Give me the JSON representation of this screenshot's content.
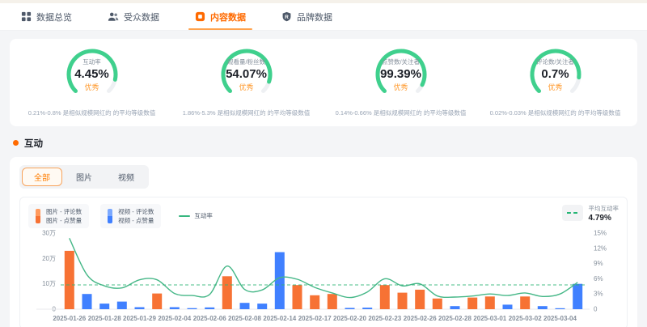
{
  "nav": {
    "tabs": [
      {
        "label": "数据总览",
        "icon": "grid-icon",
        "active": false
      },
      {
        "label": "受众数据",
        "icon": "audience-icon",
        "active": false
      },
      {
        "label": "内容数据",
        "icon": "content-icon",
        "active": true
      },
      {
        "label": "品牌数据",
        "icon": "brand-icon",
        "active": false
      }
    ]
  },
  "gauges": [
    {
      "title": "互动率",
      "value": "4.45%",
      "grade": "优秀",
      "note": "0.21%-0.8% 是相似规模网红的 的平均等级数值",
      "arc_fill": 0.88
    },
    {
      "title": "观看量/粉丝数",
      "value": "54.07%",
      "grade": "优秀",
      "note": "1.86%-5.3% 是相似规模网红的 的平均等级数值",
      "arc_fill": 0.9
    },
    {
      "title": "点赞数/关注者",
      "value": "99.39%",
      "grade": "优秀",
      "note": "0.14%-0.66% 是相似规模网红的 的平均等级数值",
      "arc_fill": 0.93
    },
    {
      "title": "评论数/关注者",
      "value": "0.7%",
      "grade": "优秀",
      "note": "0.02%-0.03% 是相似规模网红的 的平均等级数值",
      "arc_fill": 0.86
    }
  ],
  "section": {
    "title": "互动"
  },
  "filter_tabs": [
    {
      "label": "全部",
      "active": true
    },
    {
      "label": "图片",
      "active": false
    },
    {
      "label": "视频",
      "active": false
    }
  ],
  "legend": {
    "image": {
      "line1": "图片 - 评论数",
      "line2": "图片 - 点赞量",
      "color_top": "#ff9a5e",
      "color_bottom": "#f77234"
    },
    "video": {
      "line1": "视频 - 评论数",
      "line2": "视频 - 点赞量",
      "color_top": "#7ca9ff",
      "color_bottom": "#4080ff"
    },
    "rate": {
      "label": "互动率",
      "color": "#37b77f"
    }
  },
  "avg_legend": {
    "label": "平均互动率",
    "value": "4.79%"
  },
  "colors": {
    "accent_orange": "#ff6a00",
    "grade_orange": "#ff9a2e",
    "gauge_green": "#3fd08d",
    "bar_image": "#f77234",
    "bar_video": "#4080ff",
    "line_green": "#45b787"
  },
  "chart_data": {
    "type": "bar",
    "yticks_left": [
      "0",
      "10万",
      "20万",
      "30万"
    ],
    "ylim_left_wan": [
      0,
      30
    ],
    "yticks_right": [
      "0",
      "3%",
      "6%",
      "9%",
      "12%",
      "15%"
    ],
    "ylim_right_pct": [
      0,
      15
    ],
    "average_line_pct": 4.79,
    "line_name": "互动率",
    "bars": [
      {
        "date": "2025-01-26",
        "wan": 23.0,
        "type": "image"
      },
      {
        "date": "",
        "wan": 6.0,
        "type": "video"
      },
      {
        "date": "2025-01-28",
        "wan": 2.2,
        "type": "video"
      },
      {
        "date": "",
        "wan": 3.0,
        "type": "video"
      },
      {
        "date": "2025-01-29",
        "wan": 0.8,
        "type": "video"
      },
      {
        "date": "",
        "wan": 6.2,
        "type": "image"
      },
      {
        "date": "2025-02-04",
        "wan": 0.8,
        "type": "video"
      },
      {
        "date": "",
        "wan": 0.4,
        "type": "video"
      },
      {
        "date": "2025-02-06",
        "wan": 0.7,
        "type": "video"
      },
      {
        "date": "",
        "wan": 13.0,
        "type": "image"
      },
      {
        "date": "2025-02-08",
        "wan": 2.5,
        "type": "video"
      },
      {
        "date": "",
        "wan": 2.2,
        "type": "video"
      },
      {
        "date": "2025-02-14",
        "wan": 22.5,
        "type": "video"
      },
      {
        "date": "",
        "wan": 9.5,
        "type": "image"
      },
      {
        "date": "2025-02-17",
        "wan": 5.5,
        "type": "image"
      },
      {
        "date": "",
        "wan": 6.0,
        "type": "image"
      },
      {
        "date": "2025-02-20",
        "wan": 0.5,
        "type": "video"
      },
      {
        "date": "",
        "wan": 0.6,
        "type": "video"
      },
      {
        "date": "2025-02-23",
        "wan": 9.5,
        "type": "image"
      },
      {
        "date": "",
        "wan": 6.5,
        "type": "image"
      },
      {
        "date": "2025-02-26",
        "wan": 7.7,
        "type": "image"
      },
      {
        "date": "",
        "wan": 4.2,
        "type": "image"
      },
      {
        "date": "2025-02-28",
        "wan": 1.2,
        "type": "video"
      },
      {
        "date": "",
        "wan": 4.6,
        "type": "image"
      },
      {
        "date": "2025-03-01",
        "wan": 5.0,
        "type": "image"
      },
      {
        "date": "",
        "wan": 1.8,
        "type": "video"
      },
      {
        "date": "2025-03-02",
        "wan": 5.0,
        "type": "image"
      },
      {
        "date": "",
        "wan": 1.2,
        "type": "video"
      },
      {
        "date": "2025-03-04",
        "wan": 0.3,
        "type": "video"
      },
      {
        "date": "",
        "wan": 10.0,
        "type": "video"
      }
    ],
    "line_pct": [
      14.0,
      6.8,
      4.6,
      4.2,
      5.8,
      5.8,
      3.1,
      2.7,
      2.9,
      8.5,
      3.9,
      3.8,
      6.2,
      5.9,
      4.3,
      3.2,
      2.3,
      3.4,
      6.0,
      4.6,
      5.0,
      2.6,
      2.4,
      2.6,
      3.0,
      2.7,
      3.2,
      2.5,
      3.0,
      5.3
    ]
  }
}
